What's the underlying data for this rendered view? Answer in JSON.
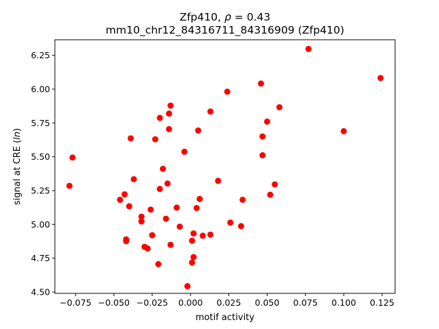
{
  "chart_data": {
    "type": "scatter",
    "title_line1_prefix": "Zfp410, ",
    "title_line1_rho": "ρ",
    "title_line1_suffix": " = 0.43",
    "title_line2": "mm10_chr12_84316711_84316909 (Zfp410)",
    "xlabel": "motif activity",
    "ylabel_prefix": "signal at CRE (",
    "ylabel_italic": "ln",
    "ylabel_suffix": ")",
    "xlim": [
      -0.0885,
      0.1335
    ],
    "ylim": [
      4.49,
      6.365
    ],
    "xticks": [
      -0.075,
      -0.05,
      -0.025,
      0.0,
      0.025,
      0.05,
      0.075,
      0.1,
      0.125
    ],
    "xtick_labels": [
      "−0.075",
      "−0.050",
      "−0.025",
      "0.000",
      "0.025",
      "0.050",
      "0.075",
      "0.100",
      "0.125"
    ],
    "yticks": [
      4.5,
      4.75,
      5.0,
      5.25,
      5.5,
      5.75,
      6.0,
      6.25
    ],
    "ytick_labels": [
      "4.50",
      "4.75",
      "5.00",
      "5.25",
      "5.50",
      "5.75",
      "6.00",
      "6.25"
    ],
    "color": "#ff0000",
    "points": [
      {
        "x": 0.077,
        "y": 6.297
      },
      {
        "x": 0.124,
        "y": 6.082
      },
      {
        "x": 0.046,
        "y": 6.041
      },
      {
        "x": 0.024,
        "y": 5.981
      },
      {
        "x": -0.013,
        "y": 5.878
      },
      {
        "x": 0.058,
        "y": 5.866
      },
      {
        "x": 0.013,
        "y": 5.834
      },
      {
        "x": -0.014,
        "y": 5.819
      },
      {
        "x": -0.02,
        "y": 5.787
      },
      {
        "x": 0.05,
        "y": 5.76
      },
      {
        "x": -0.014,
        "y": 5.704
      },
      {
        "x": 0.005,
        "y": 5.694
      },
      {
        "x": 0.1,
        "y": 5.689
      },
      {
        "x": 0.047,
        "y": 5.65
      },
      {
        "x": -0.039,
        "y": 5.636
      },
      {
        "x": -0.023,
        "y": 5.629
      },
      {
        "x": -0.004,
        "y": 5.537
      },
      {
        "x": 0.047,
        "y": 5.511
      },
      {
        "x": -0.077,
        "y": 5.494
      },
      {
        "x": -0.018,
        "y": 5.411
      },
      {
        "x": -0.037,
        "y": 5.334
      },
      {
        "x": 0.018,
        "y": 5.322
      },
      {
        "x": -0.015,
        "y": 5.302
      },
      {
        "x": 0.055,
        "y": 5.296
      },
      {
        "x": -0.079,
        "y": 5.285
      },
      {
        "x": -0.02,
        "y": 5.262
      },
      {
        "x": -0.043,
        "y": 5.222
      },
      {
        "x": 0.052,
        "y": 5.219
      },
      {
        "x": 0.006,
        "y": 5.188
      },
      {
        "x": 0.034,
        "y": 5.182
      },
      {
        "x": -0.046,
        "y": 5.182
      },
      {
        "x": -0.04,
        "y": 5.134
      },
      {
        "x": -0.009,
        "y": 5.124
      },
      {
        "x": 0.004,
        "y": 5.121
      },
      {
        "x": -0.026,
        "y": 5.109
      },
      {
        "x": -0.032,
        "y": 5.057
      },
      {
        "x": -0.016,
        "y": 5.042
      },
      {
        "x": -0.032,
        "y": 5.022
      },
      {
        "x": 0.026,
        "y": 5.013
      },
      {
        "x": -0.007,
        "y": 4.983
      },
      {
        "x": 0.033,
        "y": 4.987
      },
      {
        "x": 0.002,
        "y": 4.933
      },
      {
        "x": 0.013,
        "y": 4.924
      },
      {
        "x": -0.025,
        "y": 4.92
      },
      {
        "x": 0.008,
        "y": 4.916
      },
      {
        "x": -0.042,
        "y": 4.889
      },
      {
        "x": -0.042,
        "y": 4.876
      },
      {
        "x": 0.001,
        "y": 4.879
      },
      {
        "x": -0.013,
        "y": 4.849
      },
      {
        "x": -0.03,
        "y": 4.834
      },
      {
        "x": -0.028,
        "y": 4.822
      },
      {
        "x": 0.002,
        "y": 4.758
      },
      {
        "x": 0.001,
        "y": 4.718
      },
      {
        "x": -0.021,
        "y": 4.706
      },
      {
        "x": -0.002,
        "y": 4.543
      }
    ]
  }
}
